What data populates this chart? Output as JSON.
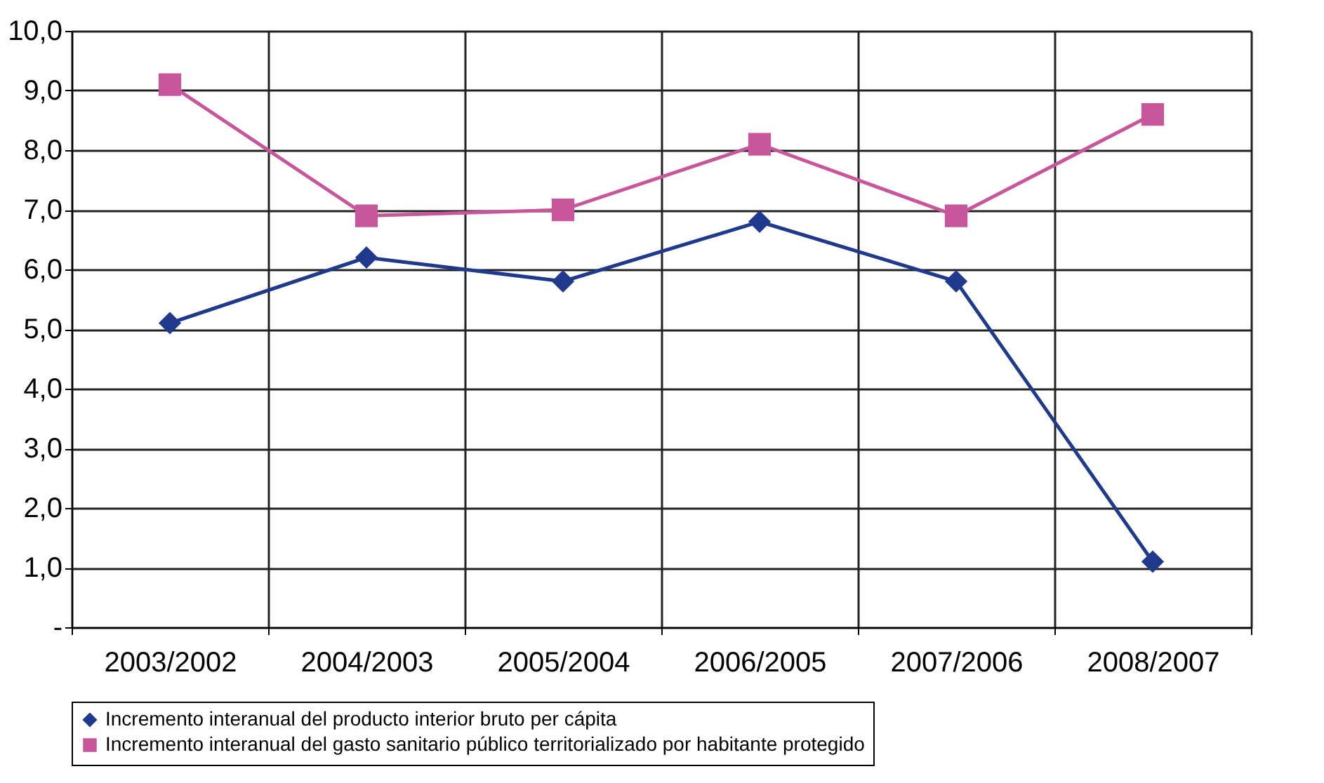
{
  "chart_data": {
    "type": "line",
    "categories": [
      "2003/2002",
      "2004/2003",
      "2005/2004",
      "2006/2005",
      "2007/2006",
      "2008/2007"
    ],
    "series": [
      {
        "name": "Incremento interanual del producto interior bruto per cápita",
        "color": "#1f3a8c",
        "marker": "diamond",
        "values": [
          5.1,
          6.2,
          5.8,
          6.8,
          5.8,
          1.1
        ]
      },
      {
        "name": "Incremento interanual del gasto sanitario público territorializado por habitante protegido",
        "color": "#c8569a",
        "marker": "square",
        "values": [
          9.1,
          6.9,
          7.0,
          8.1,
          6.9,
          8.6
        ]
      }
    ],
    "ylim": [
      0,
      10
    ],
    "yticks": [
      {
        "value": 0,
        "label": "-"
      },
      {
        "value": 1,
        "label": "1,0"
      },
      {
        "value": 2,
        "label": "2,0"
      },
      {
        "value": 3,
        "label": "3,0"
      },
      {
        "value": 4,
        "label": "4,0"
      },
      {
        "value": 5,
        "label": "5,0"
      },
      {
        "value": 6,
        "label": "6,0"
      },
      {
        "value": 7,
        "label": "7,0"
      },
      {
        "value": 8,
        "label": "8,0"
      },
      {
        "value": 9,
        "label": "9,0"
      },
      {
        "value": 10,
        "label": "10,0"
      }
    ],
    "grid": true,
    "legend": "bottom",
    "line_style": "solid"
  }
}
